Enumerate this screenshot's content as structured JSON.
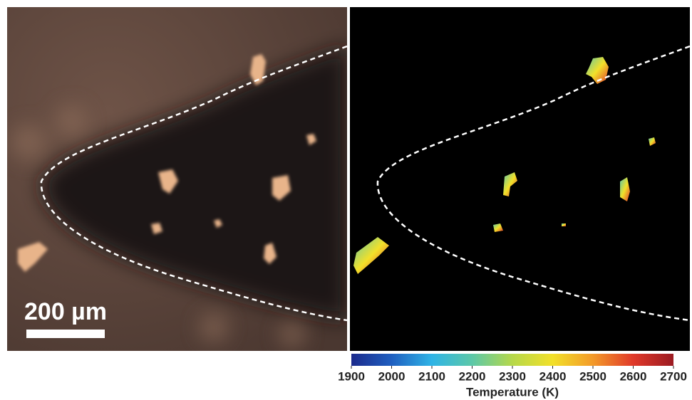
{
  "scale_bar": {
    "label": "200 µm"
  },
  "colorbar": {
    "label": "Temperature (K)",
    "lim": [
      1900,
      2700
    ],
    "ticks": [
      1900,
      2000,
      2100,
      2200,
      2300,
      2400,
      2500,
      2600,
      2700
    ],
    "colormap": [
      "#1c2b8c",
      "#1f5fc0",
      "#2fb4e6",
      "#5cc8a8",
      "#b6d84a",
      "#f2e02a",
      "#f39a2a",
      "#e0392a",
      "#9b1b22"
    ]
  }
}
